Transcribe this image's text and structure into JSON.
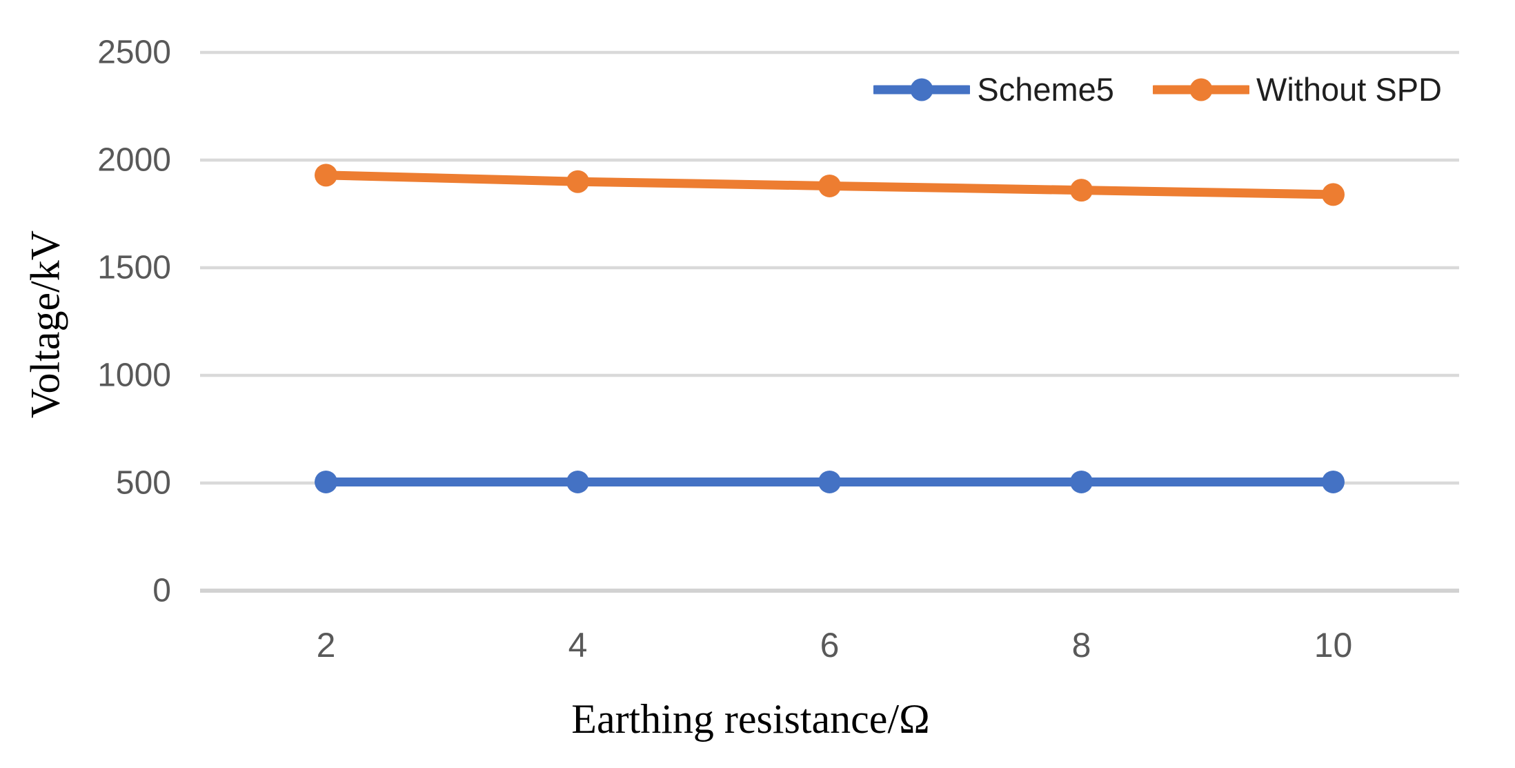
{
  "chart_data": {
    "type": "line",
    "title": "",
    "xlabel": "Earthing resistance/Ω",
    "ylabel": "Voltage/kV",
    "x": [
      2,
      4,
      6,
      8,
      10
    ],
    "xtick_labels": [
      "2",
      "4",
      "6",
      "8",
      "10"
    ],
    "ytick_labels": [
      "2500",
      "2000",
      "1500",
      "1000",
      "500",
      "0"
    ],
    "ylim": [
      0,
      2500
    ],
    "ytick_step": 500,
    "grid": "horizontal-only",
    "legend_position": "top-right",
    "series": [
      {
        "name": "Scheme5",
        "color": "#4472C4",
        "values": [
          505,
          505,
          505,
          505,
          505
        ]
      },
      {
        "name": "Without SPD",
        "color": "#ED7D31",
        "values": [
          1930,
          1900,
          1880,
          1860,
          1840
        ]
      }
    ],
    "colors": {
      "gridline": "#D9D9D9",
      "axis_line": "#D2D2D2",
      "tick_label": "#595959",
      "legend_text": "#1F1F1F",
      "axis_title": "#000000"
    }
  }
}
